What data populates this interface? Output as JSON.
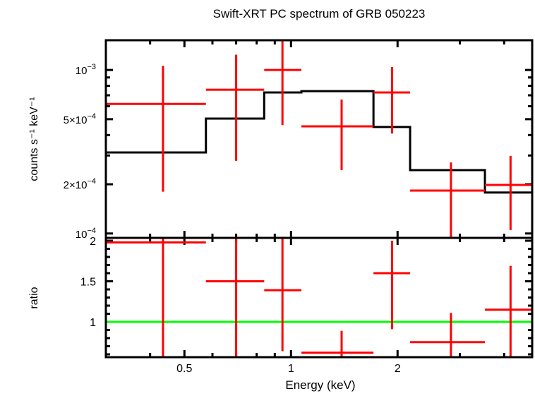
{
  "chart_data": [
    {
      "type": "scatter",
      "panel": "spectrum",
      "title": "Swift-XRT PC spectrum of GRB 050223",
      "xlabel": "Energy (keV)",
      "ylabel": "counts s⁻¹ keV⁻¹",
      "xscale": "log",
      "yscale": "log",
      "xlim": [
        0.3,
        4.8
      ],
      "ylim": [
        9.4e-05,
        0.00152
      ],
      "ytick_labels": [
        {
          "value": 0.001,
          "base": "10",
          "exp": "−3"
        },
        {
          "value": 0.0005,
          "base": "5×10",
          "exp": "−4"
        },
        {
          "value": 0.0002,
          "base": "2×10",
          "exp": "−4"
        },
        {
          "value": 0.0001,
          "base": "10",
          "exp": "−4"
        }
      ],
      "data": {
        "name": "data",
        "color": "#ff0000",
        "points": [
          {
            "x": 0.435,
            "xlo": 0.3,
            "xhi": 0.575,
            "y": 0.00062,
            "ylo": 0.00018,
            "yhi": 0.00106
          },
          {
            "x": 0.7,
            "xlo": 0.575,
            "xhi": 0.84,
            "y": 0.000757,
            "ylo": 0.000278,
            "yhi": 0.00124
          },
          {
            "x": 0.946,
            "xlo": 0.84,
            "xhi": 1.07,
            "y": 0.001,
            "ylo": 0.00046,
            "yhi": 0.0016
          },
          {
            "x": 1.39,
            "xlo": 1.07,
            "xhi": 1.71,
            "y": 0.000452,
            "ylo": 0.000244,
            "yhi": 0.000659
          },
          {
            "x": 1.93,
            "xlo": 1.71,
            "xhi": 2.17,
            "y": 0.000728,
            "ylo": 0.000409,
            "yhi": 0.00104
          },
          {
            "x": 2.83,
            "xlo": 2.17,
            "xhi": 3.53,
            "y": 0.000183,
            "ylo": 9e-05,
            "yhi": 0.000272
          },
          {
            "x": 4.17,
            "xlo": 3.53,
            "xhi": 4.8,
            "y": 0.000198,
            "ylo": 0.000105,
            "yhi": 0.000298
          }
        ]
      },
      "model": {
        "name": "model",
        "color": "#000000",
        "steps": [
          {
            "xlo": 0.3,
            "xhi": 0.575,
            "y": 0.000313
          },
          {
            "xlo": 0.575,
            "xhi": 0.84,
            "y": 0.000504
          },
          {
            "xlo": 0.84,
            "xhi": 1.07,
            "y": 0.000728
          },
          {
            "xlo": 1.07,
            "xhi": 1.71,
            "y": 0.000742
          },
          {
            "xlo": 1.71,
            "xhi": 2.17,
            "y": 0.000448
          },
          {
            "xlo": 2.17,
            "xhi": 3.53,
            "y": 0.000244
          },
          {
            "xlo": 3.53,
            "xhi": 4.8,
            "y": 0.000178
          }
        ]
      }
    },
    {
      "type": "scatter",
      "panel": "ratio",
      "xlabel": "Energy (keV)",
      "ylabel": "ratio",
      "xscale": "log",
      "xlim": [
        0.3,
        4.8
      ],
      "ylim": [
        0.565,
        2.035
      ],
      "xtick_labels": [
        {
          "value": 0.5,
          "label": "0.5"
        },
        {
          "value": 1,
          "label": "1"
        },
        {
          "value": 2,
          "label": "2"
        }
      ],
      "ytick_labels": [
        {
          "value": 2,
          "label": "2"
        },
        {
          "value": 1.5,
          "label": "1.5"
        },
        {
          "value": 1,
          "label": "1"
        }
      ],
      "reference_line": {
        "y": 1,
        "color": "#00ff00"
      },
      "data": {
        "color": "#ff0000",
        "points": [
          {
            "x": 0.435,
            "xlo": 0.3,
            "xhi": 0.575,
            "y": 1.98,
            "ylo": 0.5,
            "yhi": 2.2
          },
          {
            "x": 0.7,
            "xlo": 0.575,
            "xhi": 0.84,
            "y": 1.5,
            "ylo": 0.5,
            "yhi": 2.2
          },
          {
            "x": 0.946,
            "xlo": 0.84,
            "xhi": 1.07,
            "y": 1.39,
            "ylo": 0.64,
            "yhi": 2.2
          },
          {
            "x": 1.39,
            "xlo": 1.07,
            "xhi": 1.71,
            "y": 0.62,
            "ylo": 0.5,
            "yhi": 0.89
          },
          {
            "x": 1.93,
            "xlo": 1.71,
            "xhi": 2.17,
            "y": 1.6,
            "ylo": 0.91,
            "yhi": 2.0
          },
          {
            "x": 2.83,
            "xlo": 2.17,
            "xhi": 3.53,
            "y": 0.75,
            "ylo": 0.5,
            "yhi": 1.11
          },
          {
            "x": 4.17,
            "xlo": 3.53,
            "xhi": 4.8,
            "y": 1.15,
            "ylo": 0.5,
            "yhi": 1.69
          }
        ]
      }
    }
  ]
}
